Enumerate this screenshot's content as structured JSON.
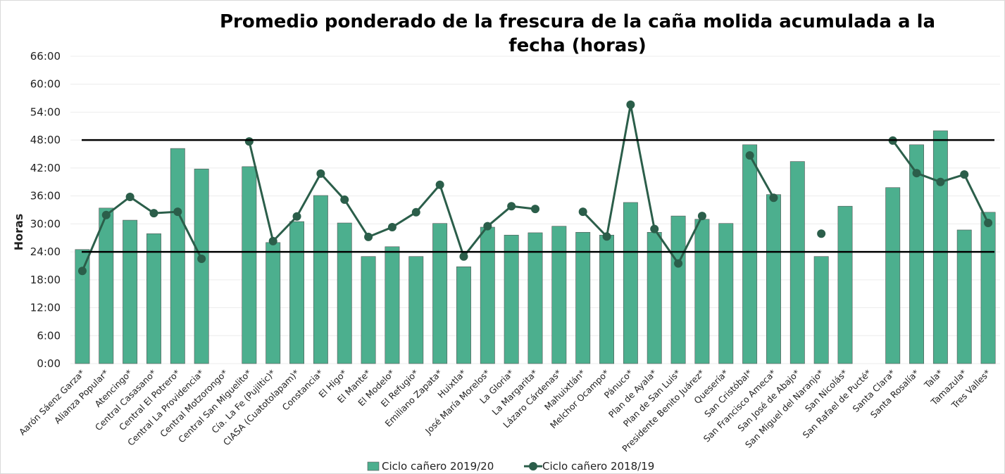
{
  "chart_data": {
    "type": "bar_line",
    "title": "Promedio ponderado de la frescura de la caña molida acumulada a la fecha (horas)",
    "y_label": "Horas",
    "categories": [
      "Aarón Sáenz Garza*",
      "Alianza Popular*",
      "Atencingo*",
      "Central Casasano*",
      "Central El Potrero*",
      "Central La Providencia*",
      "Central Motzorongo*",
      "Central San Miguelito*",
      "Cía. La Fe (Pujiltic)*",
      "CIASA (Cuatotolapam)*",
      "Constancia*",
      "El Higo*",
      "El Mante*",
      "El Modelo*",
      "El Refugio*",
      "Emiliano Zapata*",
      "Huixtla*",
      "José María Morelos*",
      "La Gloria*",
      "La Margarita*",
      "Lázaro Cárdenas*",
      "Mahuixtlán*",
      "Melchor Ocampo*",
      "Pánuco*",
      "Plan de Ayala*",
      "Plan de San Luis*",
      "Presidente Benito Juárez*",
      "Quesería*",
      "San Cristóbal*",
      "San Francisco Ameca*",
      "San José de Abajo*",
      "San Miguel del Naranjo*",
      "San Nicolás*",
      "San Rafael de Pucté*",
      "Santa Clara*",
      "Santa Rosalía*",
      "Tala*",
      "Tamazula*",
      "Tres Valles*"
    ],
    "series": [
      {
        "name": "Ciclo cañero 2019/20",
        "type": "bar",
        "color": "#4caf8e",
        "values": [
          24.5,
          33.4,
          30.8,
          27.9,
          46.2,
          41.8,
          null,
          42.3,
          26.0,
          30.5,
          36.1,
          30.2,
          23.0,
          25.1,
          23.0,
          30.1,
          20.8,
          29.3,
          27.6,
          28.1,
          29.5,
          28.2,
          27.6,
          34.6,
          28.2,
          31.7,
          31.0,
          30.1,
          47.0,
          36.3,
          43.4,
          23.0,
          33.8,
          null,
          37.8,
          47.0,
          50.0,
          28.7,
          32.5
        ]
      },
      {
        "name": "Ciclo cañero 2018/19",
        "type": "line",
        "color": "#2b5e4a",
        "values": [
          19.9,
          31.9,
          35.8,
          32.3,
          32.6,
          22.5,
          null,
          47.7,
          26.3,
          31.6,
          40.8,
          35.2,
          27.2,
          29.3,
          32.5,
          38.4,
          23.0,
          29.5,
          33.8,
          33.2,
          null,
          32.6,
          27.3,
          55.6,
          28.9,
          21.5,
          31.7,
          null,
          44.7,
          35.6,
          null,
          27.9,
          null,
          null,
          47.9,
          40.9,
          39.0,
          40.6,
          30.2
        ]
      }
    ],
    "reference_lines": [
      24,
      48
    ],
    "ylim": [
      0,
      66
    ],
    "yticks": [
      {
        "value": 0,
        "label": "0:00"
      },
      {
        "value": 6,
        "label": "6:00"
      },
      {
        "value": 12,
        "label": "12:00"
      },
      {
        "value": 18,
        "label": "18:00"
      },
      {
        "value": 24,
        "label": "24:00"
      },
      {
        "value": 30,
        "label": "30:00"
      },
      {
        "value": 36,
        "label": "36:00"
      },
      {
        "value": 42,
        "label": "42:00"
      },
      {
        "value": 48,
        "label": "48:00"
      },
      {
        "value": 54,
        "label": "54:00"
      },
      {
        "value": 60,
        "label": "60:00"
      },
      {
        "value": 66,
        "label": "66:00"
      }
    ],
    "grid": true,
    "legend": "bottom"
  }
}
